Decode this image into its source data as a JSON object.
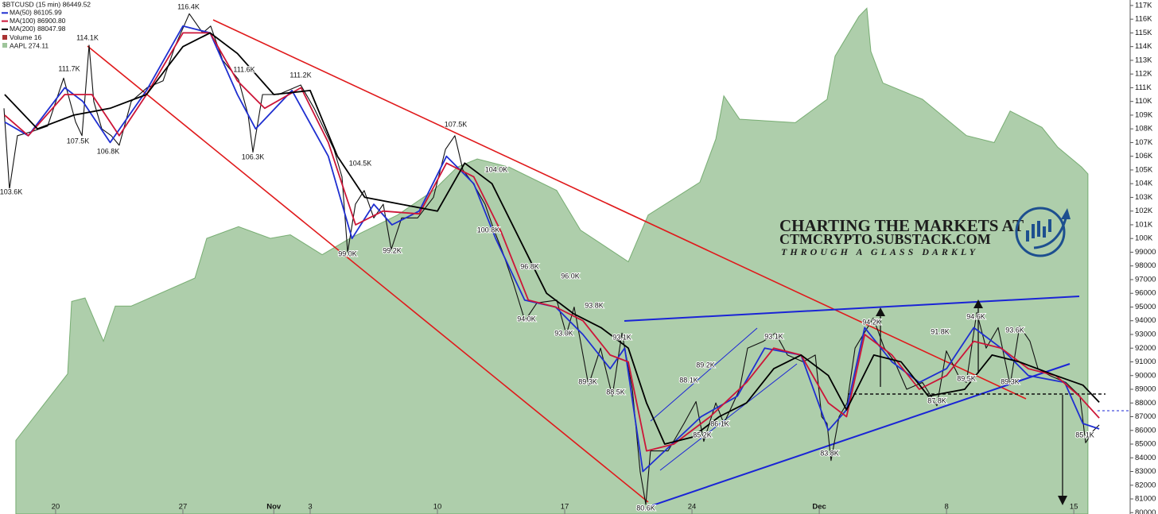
{
  "chart_data": {
    "type": "line",
    "volume_label": "Volume 16",
    "xlim": [
      17.16,
      79.1
    ],
    "xticks": [
      20,
      27,
      {
        "value": 32,
        "label": "Nov"
      },
      {
        "value": 34,
        "label": "3"
      },
      {
        "value": 41,
        "label": "10"
      },
      {
        "value": 48,
        "label": "17"
      },
      {
        "value": 55,
        "label": "24"
      },
      {
        "value": 62,
        "label": "Dec"
      },
      {
        "value": 69,
        "label": "8"
      },
      {
        "value": 76,
        "label": "15"
      }
    ],
    "ylim": [
      79900,
      117400
    ],
    "yticks": [
      80000,
      81000,
      82000,
      83000,
      84000,
      85000,
      86000,
      87000,
      88000,
      89000,
      90000,
      91000,
      92000,
      93000,
      94000,
      95000,
      96000,
      97000,
      98000,
      99000,
      {
        "value": 100000,
        "label": "100K"
      },
      {
        "value": 101000,
        "label": "101K"
      },
      {
        "value": 102000,
        "label": "102K"
      },
      {
        "value": 103000,
        "label": "103K"
      },
      {
        "value": 104000,
        "label": "104K"
      },
      {
        "value": 105000,
        "label": "105K"
      },
      {
        "value": 106000,
        "label": "106K"
      },
      {
        "value": 107000,
        "label": "107K"
      },
      {
        "value": 108000,
        "label": "108K"
      },
      {
        "value": 109000,
        "label": "109K"
      },
      {
        "value": 110000,
        "label": "110K"
      },
      {
        "value": 111000,
        "label": "111K"
      },
      {
        "value": 112000,
        "label": "112K"
      },
      {
        "value": 113000,
        "label": "113K"
      },
      {
        "value": 114000,
        "label": "114K"
      },
      {
        "value": 115000,
        "label": "115K"
      },
      {
        "value": 116000,
        "label": "116K"
      },
      {
        "value": 117000,
        "label": "117K"
      }
    ],
    "y2lim": [
      245,
      289
    ],
    "series": [
      {
        "name": "AAPL 274.11",
        "color": "#3d8b37",
        "axis": "y2",
        "x": [
          17.81,
          20.66,
          20.88,
          21.62,
          22.63,
          23.28,
          24.16,
          27.66,
          28.31,
          30.06,
          31.81,
          32.91,
          34.66,
          36.19,
          38.81,
          40.78,
          42.09,
          43.19,
          44.94,
          47.56,
          48.87,
          51.5,
          52.59,
          55.43,
          56.31,
          56.75,
          57.62,
          60.68,
          62.43,
          62.87,
          64.18,
          64.62,
          64.84,
          65.5,
          67.68,
          70.09,
          71.62,
          72.5,
          74.25,
          75.12,
          76.43,
          76.78
        ],
        "values": [
          251.3,
          257.0,
          263.2,
          263.5,
          259.8,
          262.8,
          262.8,
          265.2,
          268.6,
          269.6,
          268.6,
          268.9,
          267.2,
          268.6,
          270.6,
          272.7,
          274.7,
          275.4,
          274.7,
          272.7,
          269.3,
          266.6,
          270.6,
          273.4,
          277.1,
          280.8,
          278.8,
          278.5,
          280.5,
          284.2,
          287.6,
          288.3,
          284.6,
          281.9,
          280.5,
          277.4,
          276.8,
          279.5,
          278.1,
          276.4,
          274.7,
          274.11
        ]
      },
      {
        "name": "$BTCUSD (15 min) 86449.52",
        "color": "#111111",
        "x": [
          17.16,
          17.46,
          17.9,
          18.69,
          19.56,
          20.44,
          21.1,
          21.45,
          21.84,
          22.1,
          22.54,
          23.06,
          23.5,
          24.16,
          25.03,
          25.91,
          26.56,
          27.35,
          28.09,
          28.53,
          29.19,
          30.06,
          30.59,
          30.85,
          31.38,
          32.25,
          33.48,
          34.22,
          35.31,
          35.75,
          36.06,
          36.49,
          36.97,
          37.5,
          38.02,
          38.46,
          39.03,
          39.91,
          40.78,
          41.44,
          41.96,
          42.4,
          42.97,
          43.62,
          44.06,
          44.59,
          45.16,
          45.81,
          46.47,
          47.56,
          48.09,
          48.52,
          49.31,
          49.97,
          50.62,
          51.15,
          51.72,
          52.15,
          52.46,
          52.72,
          53.68,
          54.56,
          55.22,
          55.65,
          56.31,
          56.75,
          57.1,
          57.62,
          58.06,
          58.93,
          59.59,
          60.25,
          61.12,
          61.78,
          62.13,
          62.43,
          62.65,
          63.09,
          63.53,
          63.97,
          64.97,
          65.58,
          66.15,
          66.81,
          67.68,
          68.47,
          68.99,
          69.65,
          70.09,
          70.66,
          71.18,
          71.84,
          72.5,
          73.02,
          73.59,
          74.03,
          74.68,
          75.56,
          76.34,
          76.65,
          77.09,
          77.4
        ],
        "values": [
          109500,
          103600,
          107500,
          107800,
          108200,
          111700,
          108500,
          107500,
          114100,
          110000,
          108000,
          107500,
          106800,
          110000,
          111000,
          111500,
          114000,
          116400,
          115000,
          115500,
          113000,
          111600,
          109000,
          106300,
          110500,
          110500,
          111200,
          109500,
          106500,
          104500,
          99000,
          102500,
          103500,
          101500,
          102500,
          99200,
          101500,
          101500,
          103000,
          106500,
          107500,
          105000,
          104000,
          102500,
          100800,
          99000,
          96800,
          94000,
          95300,
          95500,
          93000,
          95000,
          89300,
          92000,
          88500,
          93100,
          89000,
          83000,
          80600,
          84500,
          84500,
          86500,
          88100,
          85200,
          88000,
          86500,
          87500,
          89000,
          92000,
          92500,
          93100,
          91500,
          91000,
          91500,
          87000,
          86500,
          83800,
          87000,
          88000,
          92000,
          94200,
          92000,
          91000,
          89000,
          89500,
          87800,
          91800,
          90000,
          89500,
          94600,
          92000,
          93500,
          89300,
          93600,
          92500,
          90500,
          90000,
          89500,
          88500,
          85100,
          86000,
          86400
        ]
      },
      {
        "name": "MA(50) 86105.99",
        "color": "#1f2fd0",
        "x": [
          17.2,
          18.5,
          20.5,
          21.5,
          23,
          25,
          27,
          28.5,
          30,
          31,
          33,
          35,
          36.3,
          37.5,
          38.5,
          40,
          41.5,
          43,
          44.2,
          45.8,
          47.5,
          49,
          50.5,
          51.3,
          52.3,
          53.5,
          55.5,
          57.5,
          59,
          61,
          62.5,
          63.5,
          64.5,
          66,
          67.5,
          69,
          70.5,
          72,
          73.5,
          75.5,
          76.5,
          77.4
        ],
        "values": [
          108500,
          107500,
          111000,
          110000,
          107000,
          110800,
          115500,
          115000,
          110500,
          108000,
          110800,
          106000,
          100000,
          102500,
          101000,
          102000,
          106000,
          104000,
          100000,
          95500,
          95000,
          93000,
          90500,
          92000,
          83000,
          84500,
          87000,
          88500,
          92000,
          91500,
          86000,
          87500,
          93500,
          91000,
          89500,
          90500,
          93500,
          92000,
          90000,
          89500,
          86500,
          86106
        ]
      },
      {
        "name": "MA(100) 86900.80",
        "color": "#cc1538",
        "x": [
          17.2,
          18.5,
          20.5,
          22,
          23.5,
          25,
          27,
          28.5,
          30,
          31.5,
          33.5,
          35,
          36.5,
          38,
          40,
          41.5,
          43,
          44.5,
          46,
          47.5,
          49,
          50.5,
          51.5,
          52.5,
          54,
          56,
          58,
          59.5,
          61,
          62.5,
          63.5,
          64.5,
          66,
          67.5,
          69,
          70.5,
          72,
          73.5,
          75,
          76.3,
          77.4
        ],
        "values": [
          109000,
          107500,
          110500,
          110500,
          107500,
          110500,
          115000,
          115000,
          111500,
          109500,
          111000,
          107000,
          101000,
          102000,
          101800,
          105500,
          104500,
          100500,
          95500,
          95000,
          94000,
          91500,
          91000,
          84500,
          85000,
          87000,
          89500,
          92000,
          91500,
          88000,
          87000,
          93000,
          91500,
          89000,
          90000,
          92500,
          92000,
          90500,
          90000,
          88500,
          86901
        ]
      },
      {
        "name": "MA(200) 88047.98",
        "color": "#000000",
        "x": [
          17.2,
          19,
          21,
          23,
          25,
          27,
          28.5,
          30,
          32,
          34,
          35.5,
          37,
          39,
          41,
          42.5,
          44,
          45.5,
          47,
          48.5,
          50,
          51.5,
          52.5,
          53.5,
          55,
          56.5,
          58,
          59.5,
          61,
          62.5,
          63.5,
          65,
          66.5,
          68,
          70,
          71.5,
          73,
          75,
          76.5,
          77.4
        ],
        "values": [
          110500,
          108000,
          109000,
          109500,
          110500,
          114000,
          115000,
          113500,
          110500,
          110800,
          106000,
          103000,
          102500,
          102000,
          105500,
          104000,
          100000,
          96000,
          94500,
          93500,
          92000,
          88000,
          85000,
          85500,
          87000,
          88000,
          90500,
          91500,
          90000,
          87500,
          91500,
          91000,
          88500,
          89000,
          91500,
          91000,
          90000,
          89300,
          88048
        ]
      }
    ],
    "annotations": [
      "103.6K",
      "114.1K",
      "111.7K",
      "107.5K",
      "106.8K",
      "116.4K",
      "111.6K",
      "106.3K",
      "111.2K",
      "104.5K",
      "99.0K",
      "99.2K",
      "107.5K",
      "104.0K",
      "100.8K",
      "96.8K",
      "94.0K",
      "96.0K",
      "93.0K",
      "93.8K",
      "93.1K",
      "89.3K",
      "88.5K",
      "80.6K",
      "88.1K",
      "85.2K",
      "89.2K",
      "86.1K",
      "93.1K",
      "83.8K",
      "94.2K",
      "91.8K",
      "87.8K",
      "89.5K",
      "94.6K",
      "93.6K",
      "89.3K",
      "85.1K"
    ],
    "watermark": {
      "line1": "CHARTING THE MARKETS AT",
      "line2": "CTMCRYPTO.SUBSTACK.COM",
      "line3": "THROUGH A GLASS DARKLY"
    }
  }
}
